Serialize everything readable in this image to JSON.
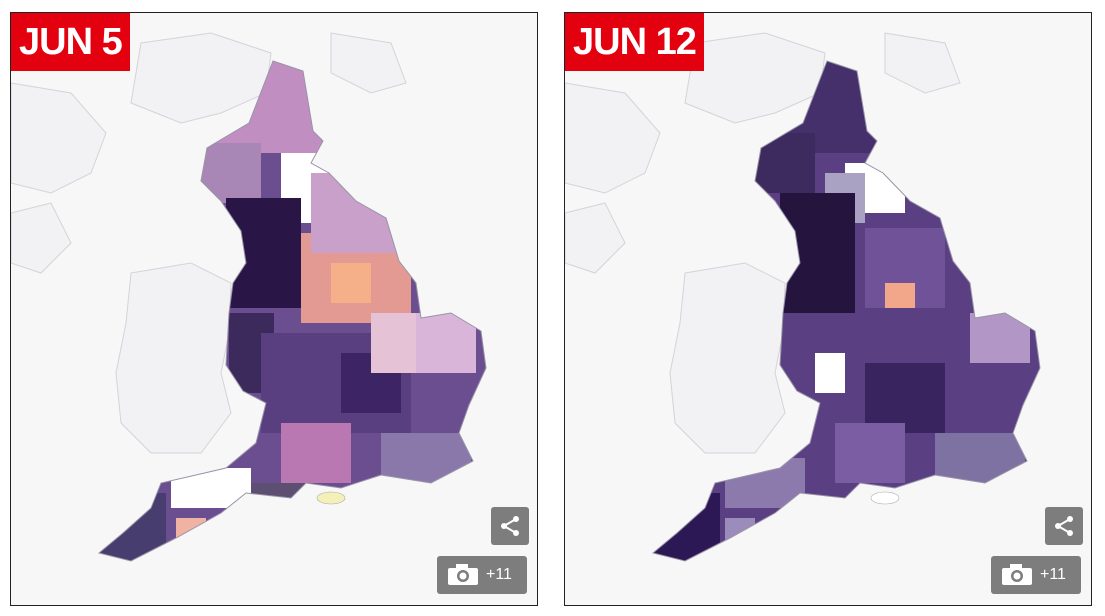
{
  "panels": [
    {
      "date_label": "JUN 5",
      "gallery_count": "+11",
      "share_icon": "share-icon",
      "camera_icon": "camera-icon"
    },
    {
      "date_label": "JUN 12",
      "gallery_count": "+11",
      "share_icon": "share-icon",
      "camera_icon": "camera-icon"
    }
  ],
  "colors": {
    "badge": "#e3000f",
    "button": "#7d7d7d",
    "map_dark": "#2a1646",
    "map_mid": "#6a4e8f",
    "map_light": "#c394c4",
    "map_orange": "#f0a088",
    "outline": "#cfcfd4"
  }
}
